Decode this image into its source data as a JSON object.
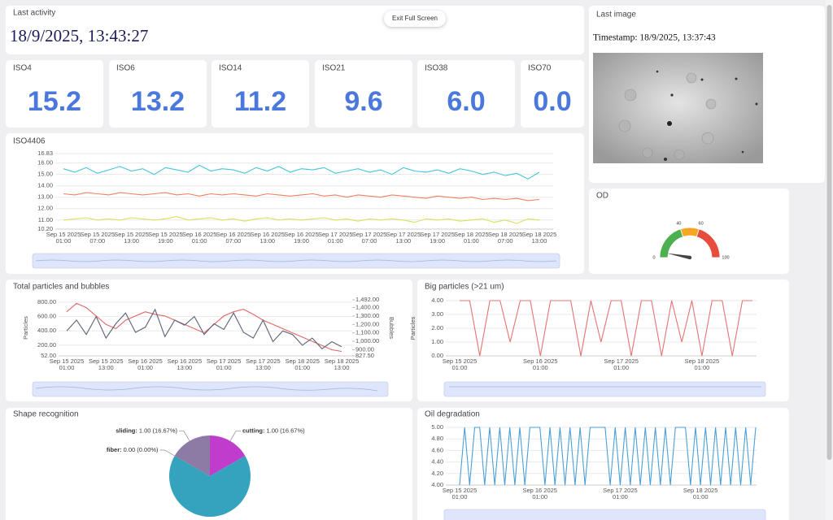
{
  "last_activity": {
    "title": "Last activity",
    "value": "18/9/2025, 13:43:27"
  },
  "exit_button": "Exit Full Screen",
  "last_image": {
    "title": "Last image",
    "timestamp": "Timestamp: 18/9/2025, 13:37:43"
  },
  "iso_cards": [
    {
      "label": "ISO4",
      "value": "15.2"
    },
    {
      "label": "ISO6",
      "value": "13.2"
    },
    {
      "label": "ISO14",
      "value": "11.2"
    },
    {
      "label": "ISO21",
      "value": "9.6"
    },
    {
      "label": "ISO38",
      "value": "6.0"
    },
    {
      "label": "ISO70",
      "value": "0.0"
    }
  ],
  "chart_data": [
    {
      "type": "line",
      "title": "ISO4406",
      "grid": true,
      "categories": [
        [
          "Sep 15 2025",
          "01:00"
        ],
        null,
        null,
        [
          "Sep 15 2025",
          "07:00"
        ],
        null,
        null,
        [
          "Sep 15 2025",
          "13:00"
        ],
        null,
        null,
        [
          "Sep 15 2025",
          "19:00"
        ],
        null,
        null,
        [
          "Sep 16 2025",
          "01:00"
        ],
        null,
        null,
        [
          "Sep 16 2025",
          "07:00"
        ],
        null,
        null,
        [
          "Sep 16 2025",
          "13:00"
        ],
        null,
        null,
        [
          "Sep 16 2025",
          "19:00"
        ],
        null,
        null,
        [
          "Sep 17 2025",
          "01:00"
        ],
        null,
        null,
        [
          "Sep 17 2025",
          "07:00"
        ],
        null,
        null,
        [
          "Sep 17 2025",
          "13:00"
        ],
        null,
        null,
        [
          "Sep 17 2025",
          "19:00"
        ],
        null,
        null,
        [
          "Sep 18 2025",
          "01:00"
        ],
        null,
        null,
        [
          "Sep 18 2025",
          "07:00"
        ],
        null,
        null,
        [
          "Sep 18 2025",
          "13:00"
        ]
      ],
      "ylim": [
        10.2,
        16.83
      ],
      "yticks": [
        {
          "value": 10.2,
          "label": "10.20"
        },
        {
          "value": 11,
          "label": "11.00"
        },
        {
          "value": 12,
          "label": "12.00"
        },
        {
          "value": 13,
          "label": "13.00"
        },
        {
          "value": 14,
          "label": "14.00"
        },
        {
          "value": 15,
          "label": "15.00"
        },
        {
          "value": 16,
          "label": "16.00"
        },
        16.83
      ],
      "series": [
        {
          "color": "#45c4dc",
          "values": [
            15.5,
            15.2,
            15.6,
            15.1,
            15.4,
            15.7,
            15.3,
            15.5,
            15.0,
            15.6,
            15.4,
            15.2,
            15.8,
            15.3,
            15.5,
            15.4,
            15.1,
            15.6,
            15.3,
            15.7,
            15.2,
            15.5,
            15.4,
            15.6,
            15.1,
            15.3,
            15.5,
            15.2,
            15.4,
            15.0,
            15.6,
            15.3,
            15.2,
            15.4,
            15.1,
            15.5,
            15.3,
            15.0,
            15.2,
            14.9,
            15.1,
            14.6,
            15.2
          ]
        },
        {
          "color": "#f08060",
          "values": [
            13.3,
            13.2,
            13.4,
            13.3,
            13.2,
            13.4,
            13.3,
            13.2,
            13.3,
            13.4,
            13.2,
            13.3,
            13.1,
            13.3,
            13.2,
            13.3,
            13.2,
            13.1,
            13.3,
            13.2,
            13.1,
            13.2,
            13.3,
            13.1,
            13.2,
            13.0,
            13.2,
            13.1,
            13.0,
            13.2,
            13.1,
            13.0,
            12.9,
            13.1,
            13.0,
            12.9,
            13.0,
            12.8,
            12.9,
            12.8,
            12.9,
            12.7,
            12.8
          ]
        },
        {
          "color": "#d6e35a",
          "values": [
            11.0,
            11.1,
            11.2,
            11.0,
            11.1,
            11.0,
            11.2,
            11.1,
            11.0,
            11.1,
            11.3,
            11.0,
            11.1,
            11.2,
            11.0,
            11.1,
            10.9,
            11.1,
            11.2,
            11.0,
            11.1,
            11.0,
            11.1,
            11.2,
            11.0,
            11.1,
            10.9,
            11.1,
            11.0,
            11.1,
            11.0,
            10.8,
            11.1,
            11.0,
            11.1,
            10.9,
            11.0,
            11.1,
            10.8,
            11.0,
            10.7,
            11.1,
            11.0
          ]
        }
      ]
    },
    {
      "type": "line",
      "title": "Total particles and bubbles",
      "grid": true,
      "ylabel": "Particles",
      "y2label": "Bubbles",
      "categories": [
        [
          "Sep 15 2025",
          "01:00"
        ],
        null,
        null,
        null,
        [
          "Sep 15 2025",
          "13:00"
        ],
        null,
        null,
        null,
        [
          "Sep 16 2025",
          "01:00"
        ],
        null,
        null,
        null,
        [
          "Sep 16 2025",
          "13:00"
        ],
        null,
        null,
        null,
        [
          "Sep 17 2025",
          "01:00"
        ],
        null,
        null,
        null,
        [
          "Sep 17 2025",
          "13:00"
        ],
        null,
        null,
        null,
        [
          "Sep 18 2025",
          "01:00"
        ],
        null,
        null,
        null,
        [
          "Sep 18 2025",
          "13:00"
        ]
      ],
      "ylim": [
        52,
        833
      ],
      "yticks": [
        {
          "value": 52,
          "label": "52.00"
        },
        {
          "value": 200,
          "label": "200.00"
        },
        {
          "value": 400,
          "label": "400.00"
        },
        {
          "value": 600,
          "label": "600.00"
        },
        {
          "value": 800,
          "label": "800.00"
        }
      ],
      "y2lim": [
        827.5,
        1492
      ],
      "y2ticks": [
        {
          "value": 827.5,
          "label": "827.50"
        },
        {
          "value": 900,
          "label": "900.00"
        },
        {
          "value": 1000,
          "label": "1,000.00"
        },
        {
          "value": 1100,
          "label": "1,100.00"
        },
        {
          "value": 1200,
          "label": "1,200.00"
        },
        {
          "value": 1300,
          "label": "1,300.00"
        },
        {
          "value": 1400,
          "label": "1,400.00"
        },
        {
          "value": 1492,
          "label": "1,492.00"
        }
      ],
      "series": [
        {
          "color": "#e06666",
          "axis": "y2",
          "values": [
            1350,
            1450,
            1400,
            1300,
            1200,
            1150,
            1250,
            1300,
            1350,
            1320,
            1300,
            1250,
            1200,
            1150,
            1100,
            1200,
            1300,
            1350,
            1380,
            1320,
            1250,
            1200,
            1150,
            1100,
            1050,
            1000,
            950,
            900,
            880
          ]
        },
        {
          "color": "#5b6378",
          "values": [
            400,
            550,
            350,
            600,
            300,
            500,
            650,
            380,
            450,
            700,
            320,
            550,
            480,
            600,
            350,
            500,
            420,
            650,
            380,
            300,
            550,
            250,
            400,
            350,
            200,
            300,
            150,
            250,
            180
          ]
        }
      ]
    },
    {
      "type": "line",
      "title": "Big particles (>21 um)",
      "grid": true,
      "ylabel": "Particles",
      "categories": [
        [
          "Sep 15 2025",
          "01:00"
        ],
        null,
        null,
        null,
        null,
        null,
        null,
        null,
        [
          "Sep 16 2025",
          "01:00"
        ],
        null,
        null,
        null,
        null,
        null,
        null,
        null,
        [
          "Sep 17 2025",
          "01:00"
        ],
        null,
        null,
        null,
        null,
        null,
        null,
        null,
        [
          "Sep 18 2025",
          "01:00"
        ],
        null,
        null,
        null,
        null,
        null
      ],
      "ylim": [
        0,
        4
      ],
      "yticks": [
        {
          "value": 0,
          "label": "0.00"
        },
        {
          "value": 1,
          "label": "1.00"
        },
        {
          "value": 2,
          "label": "2.00"
        },
        {
          "value": 3,
          "label": "3.00"
        },
        {
          "value": 4,
          "label": "4.00"
        }
      ],
      "series": [
        {
          "color": "#e57373",
          "values": [
            4,
            4,
            0,
            4,
            4,
            1,
            4,
            4,
            0,
            4,
            4,
            4,
            0,
            4,
            1,
            4,
            4,
            0,
            4,
            4,
            0,
            4,
            1,
            4,
            0,
            4,
            4,
            0,
            4,
            4
          ]
        }
      ]
    },
    {
      "type": "pie",
      "title": "Shape recognition",
      "categories": [
        "cutting:",
        null,
        "fiber:",
        "sliding:"
      ],
      "values": [
        1,
        4,
        0,
        1
      ],
      "value_labels": [
        "1.00 (16.67%)",
        null,
        "0.00 (0.00%)",
        "1.00 (16.67%)"
      ],
      "colors": [
        "#c03ccc",
        "#35a3bd",
        "#3c5a8a",
        "#8d7ba6"
      ]
    },
    {
      "type": "line",
      "title": "Oil degradation",
      "grid": true,
      "categories": [
        [
          "Sep 15 2025",
          "01:00"
        ],
        null,
        null,
        null,
        null,
        null,
        null,
        null,
        null,
        null,
        null,
        null,
        null,
        null,
        null,
        null,
        [
          "Sep 16 2025",
          "01:00"
        ],
        null,
        null,
        null,
        null,
        null,
        null,
        null,
        null,
        null,
        null,
        null,
        null,
        null,
        null,
        null,
        [
          "Sep 17 2025",
          "01:00"
        ],
        null,
        null,
        null,
        null,
        null,
        null,
        null,
        null,
        null,
        null,
        null,
        null,
        null,
        null,
        null,
        [
          "Sep 18 2025",
          "01:00"
        ],
        null,
        null,
        null,
        null,
        null,
        null,
        null,
        null,
        null,
        null,
        null
      ],
      "ylim": [
        4,
        5
      ],
      "yticks": [
        {
          "value": 4,
          "label": "4.00"
        },
        {
          "value": 4.2,
          "label": "4.20"
        },
        {
          "value": 4.4,
          "label": "4.40"
        },
        {
          "value": 4.6,
          "label": "4.60"
        },
        {
          "value": 4.8,
          "label": "4.80"
        },
        {
          "value": 5,
          "label": "5.00"
        }
      ],
      "series": [
        {
          "color": "#4a9fd8",
          "values": [
            4,
            5,
            4,
            5,
            5,
            4,
            5,
            4,
            5,
            4,
            5,
            4,
            5,
            4,
            5,
            5,
            5,
            4,
            5,
            4,
            5,
            4,
            5,
            4,
            5,
            4,
            5,
            5,
            5,
            5,
            4,
            5,
            4,
            5,
            4,
            5,
            4,
            5,
            4,
            5,
            4,
            5,
            4,
            5,
            5,
            5,
            4,
            5,
            4,
            5,
            4,
            5,
            4,
            5,
            4,
            5,
            4,
            5,
            4,
            5
          ]
        }
      ]
    },
    {
      "type": "gauge",
      "title": "OD",
      "value": 6,
      "ylim": [
        0,
        100
      ],
      "yticks": [
        0,
        40,
        60,
        100
      ],
      "bands": [
        {
          "to": 40,
          "color": "#4caf50"
        },
        {
          "to": 60,
          "color": "#f5a623"
        },
        {
          "to": 100,
          "color": "#e84c3d"
        }
      ]
    }
  ]
}
